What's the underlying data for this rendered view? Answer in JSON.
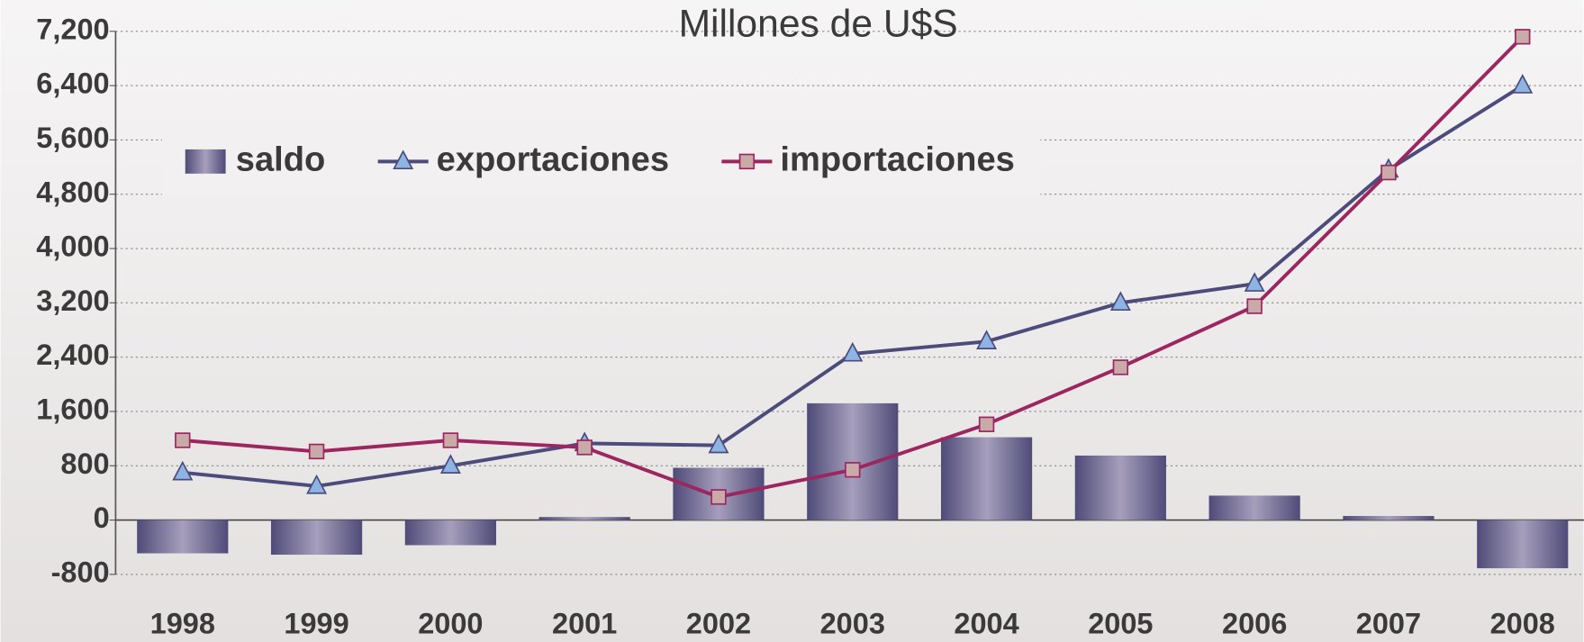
{
  "chart_data": {
    "type": "bar",
    "title": "Millones de U$S",
    "categories": [
      "1998",
      "1999",
      "2000",
      "2001",
      "2002",
      "2003",
      "2004",
      "2005",
      "2006",
      "2007",
      "2008"
    ],
    "series": [
      {
        "name": "saldo",
        "type": "bar",
        "color": "#5a5680",
        "values": [
          -490,
          -510,
          -370,
          45,
          770,
          1720,
          1220,
          950,
          360,
          60,
          -710
        ]
      },
      {
        "name": "exportaciones",
        "type": "line",
        "color": "#4b4b7c",
        "marker": "triangle",
        "marker_color": "#8db4e2",
        "values": [
          700,
          500,
          800,
          1130,
          1100,
          2450,
          2630,
          3200,
          3480,
          5160,
          6400
        ]
      },
      {
        "name": "importaciones",
        "type": "line",
        "color": "#9b2660",
        "marker": "square",
        "marker_color": "#c9aaa8",
        "values": [
          1175,
          1010,
          1175,
          1070,
          340,
          740,
          1410,
          2250,
          3150,
          5120,
          7120
        ]
      }
    ],
    "ylim": [
      -800,
      7200
    ],
    "yticks": [
      -800,
      0,
      {
        "value": 800,
        "label": "800"
      },
      {
        "value": 1600,
        "label": "1,600"
      },
      {
        "value": 2400,
        "label": "2,400"
      },
      {
        "value": 3200,
        "label": "3,200"
      },
      {
        "value": 4000,
        "label": "4,000"
      },
      {
        "value": 4800,
        "label": "4,800"
      },
      {
        "value": 5600,
        "label": "5,600"
      },
      {
        "value": 6400,
        "label": "6,400"
      },
      {
        "value": 7200,
        "label": "7,200"
      }
    ],
    "grid": true,
    "legend": "top-left"
  }
}
